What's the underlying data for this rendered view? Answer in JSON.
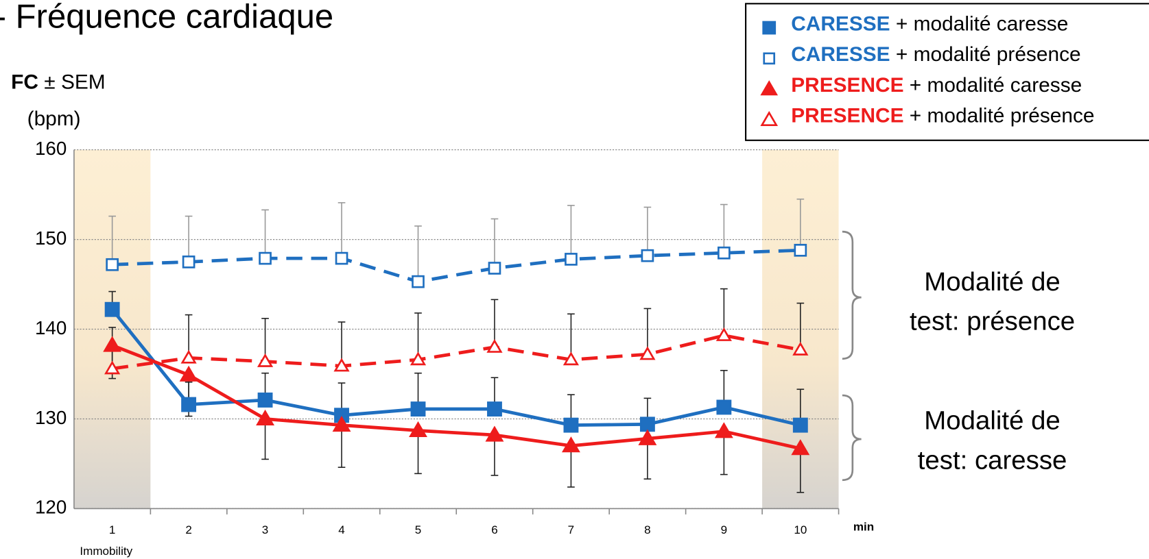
{
  "chart_data": {
    "type": "line",
    "title": "- Fréquence cardiaque",
    "y_label_bold": "FC",
    "y_label_rest": "± SEM",
    "y_label_unit": "(bpm)",
    "x_label": "min",
    "x_note": "Immobility",
    "categories": [
      "1",
      "2",
      "3",
      "4",
      "5",
      "6",
      "7",
      "8",
      "9",
      "10"
    ],
    "ylim": [
      120,
      160
    ],
    "yticks": [
      120,
      130,
      140,
      150,
      160
    ],
    "grid": true,
    "legend": "top-right",
    "series": [
      {
        "name": "CARESSE",
        "suffix": "+ modalité caresse",
        "color": "#1f6fc0",
        "marker": "square",
        "filled": true,
        "dashed": false,
        "values": [
          142.2,
          131.6,
          132.1,
          130.4,
          131.1,
          131.1,
          129.3,
          129.4,
          131.3,
          129.3
        ],
        "errors": [
          2.0,
          2.5,
          3.0,
          3.6,
          4.0,
          3.5,
          3.4,
          2.9,
          4.1,
          4.0
        ],
        "error_direction": "up",
        "error_color": "#222222"
      },
      {
        "name": "CARESSE",
        "suffix": "+ modalité présence",
        "color": "#1f6fc0",
        "marker": "square",
        "filled": false,
        "dashed": true,
        "values": [
          147.2,
          147.5,
          147.9,
          147.9,
          145.3,
          146.8,
          147.8,
          148.2,
          148.5,
          148.8
        ],
        "errors": [
          5.4,
          5.1,
          5.4,
          6.2,
          6.2,
          5.5,
          6.0,
          5.4,
          5.4,
          5.7
        ],
        "error_direction": "up",
        "error_color": "#999999"
      },
      {
        "name": "PRESENCE",
        "suffix": "+ modalité caresse",
        "color": "#ee1c1c",
        "marker": "triangle",
        "filled": true,
        "dashed": false,
        "values": [
          138.2,
          134.9,
          130.0,
          129.3,
          128.7,
          128.2,
          127.0,
          127.8,
          128.6,
          126.7
        ],
        "errors": [
          3.7,
          4.6,
          4.5,
          4.7,
          4.8,
          4.5,
          4.6,
          4.5,
          4.8,
          4.9
        ],
        "error_direction": "down",
        "error_color": "#222222"
      },
      {
        "name": "PRESENCE",
        "suffix": "+ modalité présence",
        "color": "#ee1c1c",
        "marker": "triangle",
        "filled": false,
        "dashed": true,
        "values": [
          135.6,
          136.8,
          136.4,
          135.9,
          136.6,
          138.0,
          136.6,
          137.2,
          139.3,
          137.7
        ],
        "errors": [
          4.6,
          4.8,
          4.8,
          4.9,
          5.2,
          5.3,
          5.1,
          5.1,
          5.2,
          5.2
        ],
        "error_direction": "up",
        "error_color": "#222222"
      }
    ],
    "annotations": [
      {
        "line1": "Modalité de",
        "line2": "test: présence"
      },
      {
        "line1": "Modalité de",
        "line2": "test: caresse"
      }
    ]
  }
}
